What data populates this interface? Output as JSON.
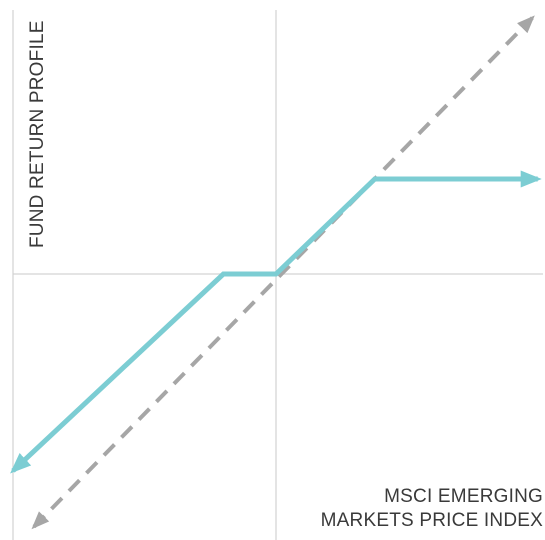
{
  "chart_data": {
    "type": "line",
    "title": "",
    "ylabel": "FUND RETURN PROFILE",
    "xlabel_lines": [
      "MSCI EMERGING",
      "MARKETS PRICE INDEX"
    ],
    "xlim": [
      -1,
      1
    ],
    "ylim": [
      -1,
      1
    ],
    "grid": false,
    "series": [
      {
        "style": "dashed",
        "arrows": "both",
        "color": "#a6a6a6",
        "x": [
          -0.92,
          0.96
        ],
        "y": [
          -0.95,
          0.97
        ]
      },
      {
        "style": "solid",
        "arrows": "both",
        "color": "#7ccdd3",
        "x": [
          -1.0,
          -0.2,
          0.0,
          0.37,
          0.98
        ],
        "y": [
          -0.74,
          0.0,
          0.0,
          0.36,
          0.36
        ]
      }
    ]
  }
}
